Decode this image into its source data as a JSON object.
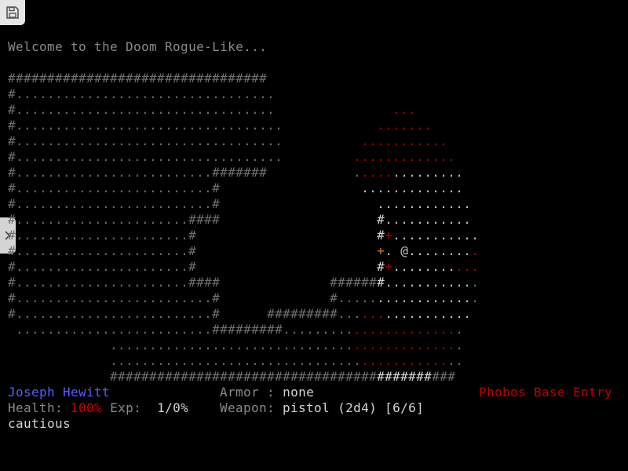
{
  "toolbar": {
    "save_icon": "floppy-disk-icon",
    "side_tab_icon": "chevron-right-icon"
  },
  "message": "Welcome to the Doom Rogue-Like...",
  "colors": {
    "d": "#6e6e6e",
    "w": "#c4c4c4",
    "r": "#a80000",
    "o": "#d07a20",
    "b": "#d6d6d6"
  },
  "map_rows": [
    [
      [
        "#",
        33,
        "d"
      ]
    ],
    [
      [
        "#",
        1,
        "d"
      ],
      [
        ".",
        33,
        "d"
      ]
    ],
    [
      [
        "#",
        1,
        "d"
      ],
      [
        ".",
        33,
        "d"
      ],
      [
        " ",
        15,
        "d"
      ],
      [
        ".",
        3,
        "r"
      ]
    ],
    [
      [
        "#",
        1,
        "d"
      ],
      [
        ".",
        34,
        "d"
      ],
      [
        " ",
        12,
        "d"
      ],
      [
        ".",
        7,
        "r"
      ]
    ],
    [
      [
        "#",
        1,
        "d"
      ],
      [
        ".",
        34,
        "d"
      ],
      [
        " ",
        10,
        "d"
      ],
      [
        ".",
        11,
        "r"
      ]
    ],
    [
      [
        "#",
        1,
        "d"
      ],
      [
        ".",
        34,
        "d"
      ],
      [
        " ",
        9,
        "d"
      ],
      [
        ".",
        13,
        "r"
      ]
    ],
    [
      [
        "#",
        1,
        "d"
      ],
      [
        ".",
        25,
        "d"
      ],
      [
        "#",
        7,
        "d"
      ],
      [
        " ",
        11,
        "d"
      ],
      [
        ".",
        1,
        "d"
      ],
      [
        ".",
        4,
        "r"
      ],
      [
        ".",
        9,
        "w"
      ]
    ],
    [
      [
        "#",
        1,
        "d"
      ],
      [
        ".",
        25,
        "d"
      ],
      [
        "#",
        1,
        "d"
      ],
      [
        " ",
        18,
        "d"
      ],
      [
        ".",
        13,
        "w"
      ]
    ],
    [
      [
        "#",
        1,
        "d"
      ],
      [
        ".",
        25,
        "d"
      ],
      [
        "#",
        1,
        "d"
      ],
      [
        " ",
        20,
        "d"
      ],
      [
        ".",
        12,
        "w"
      ]
    ],
    [
      [
        "#",
        1,
        "d"
      ],
      [
        ".",
        22,
        "d"
      ],
      [
        "#",
        4,
        "d"
      ],
      [
        " ",
        20,
        "d"
      ],
      [
        "#",
        1,
        "b"
      ],
      [
        ".",
        11,
        "w"
      ]
    ],
    [
      [
        "#",
        1,
        "d"
      ],
      [
        ".",
        22,
        "d"
      ],
      [
        "#",
        1,
        "d"
      ],
      [
        " ",
        23,
        "d"
      ],
      [
        "#",
        1,
        "b"
      ],
      [
        "+",
        1,
        "r"
      ],
      [
        ".",
        11,
        "w"
      ]
    ],
    [
      [
        "#",
        1,
        "d"
      ],
      [
        ".",
        22,
        "d"
      ],
      [
        "#",
        1,
        "d"
      ],
      [
        " ",
        23,
        "d"
      ],
      [
        "+",
        1,
        "o"
      ],
      [
        ".",
        1,
        "w"
      ],
      [
        " ",
        1,
        "w"
      ],
      [
        "@",
        1,
        "w"
      ],
      [
        ".",
        8,
        "w"
      ],
      [
        ".",
        1,
        "r"
      ]
    ],
    [
      [
        "#",
        1,
        "d"
      ],
      [
        ".",
        22,
        "d"
      ],
      [
        "#",
        1,
        "d"
      ],
      [
        " ",
        23,
        "d"
      ],
      [
        "#",
        1,
        "b"
      ],
      [
        "+",
        1,
        "r"
      ],
      [
        ".",
        8,
        "w"
      ],
      [
        ".",
        3,
        "r"
      ]
    ],
    [
      [
        "#",
        1,
        "d"
      ],
      [
        ".",
        22,
        "d"
      ],
      [
        "#",
        4,
        "d"
      ],
      [
        " ",
        14,
        "d"
      ],
      [
        "#",
        6,
        "d"
      ],
      [
        "#",
        1,
        "b"
      ],
      [
        ".",
        11,
        "w"
      ],
      [
        ".",
        1,
        "d"
      ]
    ],
    [
      [
        "#",
        1,
        "d"
      ],
      [
        ".",
        25,
        "d"
      ],
      [
        "#",
        1,
        "d"
      ],
      [
        " ",
        14,
        "d"
      ],
      [
        "#",
        1,
        "d"
      ],
      [
        ".",
        5,
        "d"
      ],
      [
        ".",
        12,
        "w"
      ],
      [
        ".",
        1,
        "d"
      ]
    ],
    [
      [
        "#",
        1,
        "d"
      ],
      [
        ".",
        25,
        "d"
      ],
      [
        "#",
        1,
        "d"
      ],
      [
        " ",
        6,
        "d"
      ],
      [
        "#",
        9,
        "d"
      ],
      [
        ".",
        3,
        "d"
      ],
      [
        ".",
        3,
        "r"
      ],
      [
        ".",
        11,
        "w"
      ]
    ],
    [
      [
        " ",
        1,
        "d"
      ],
      [
        ".",
        25,
        "d"
      ],
      [
        "#",
        9,
        "d"
      ],
      [
        ".",
        9,
        "d"
      ],
      [
        ".",
        13,
        "r"
      ],
      [
        ".",
        1,
        "d"
      ]
    ],
    [
      [
        " ",
        13,
        "d"
      ],
      [
        ".",
        31,
        "d"
      ],
      [
        ".",
        13,
        "r"
      ],
      [
        ".",
        1,
        "d"
      ]
    ],
    [
      [
        " ",
        13,
        "d"
      ],
      [
        ".",
        32,
        "d"
      ],
      [
        ".",
        11,
        "r"
      ],
      [
        ".",
        2,
        "d"
      ]
    ],
    [
      [
        " ",
        13,
        "d"
      ],
      [
        "#",
        34,
        "d"
      ],
      [
        "#",
        7,
        "b"
      ],
      [
        "#",
        3,
        "d"
      ]
    ]
  ],
  "status": {
    "player_name": "Joseph Hewitt",
    "health_label": "Health:",
    "health_value": "100%",
    "exp_label": "Exp:",
    "exp_value": "1/0%",
    "armor_label": "Armor",
    "armor_sep": ":",
    "armor_value": "none",
    "weapon_label": "Weapon:",
    "weapon_value": "pistol (2d4) [6/6]",
    "tactic": "cautious",
    "level_name": "Phobos Base Entry"
  }
}
